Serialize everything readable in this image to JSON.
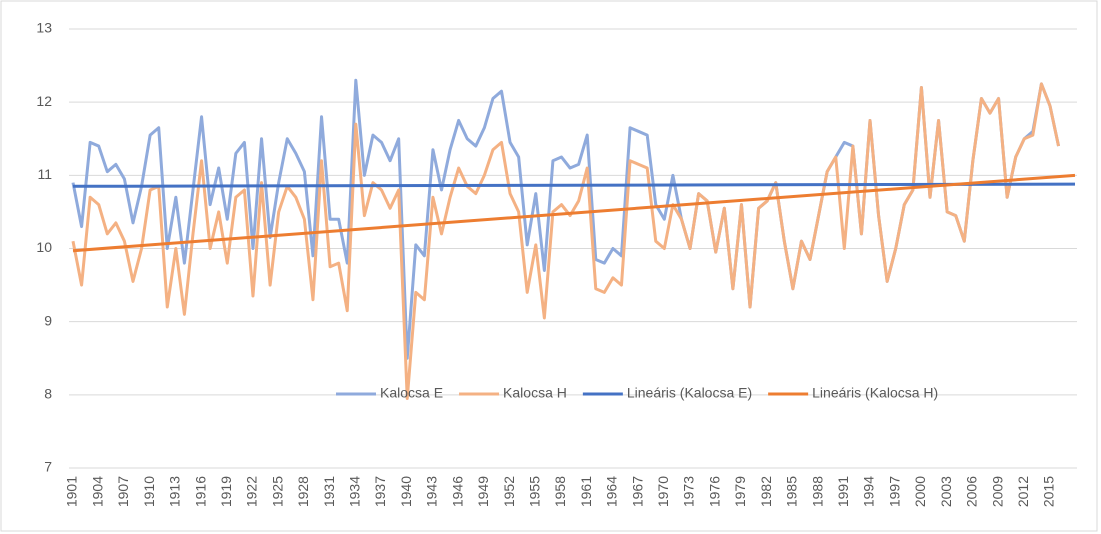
{
  "chart_data": {
    "type": "line",
    "categories": [
      "1901",
      null,
      null,
      "1904",
      null,
      null,
      "1907",
      null,
      null,
      "1910",
      null,
      null,
      "1913",
      null,
      null,
      "1916",
      null,
      null,
      "1919",
      null,
      null,
      "1922",
      null,
      null,
      "1925",
      null,
      null,
      "1928",
      null,
      null,
      "1931",
      null,
      null,
      "1934",
      null,
      null,
      "1937",
      null,
      null,
      "1940",
      null,
      null,
      "1943",
      null,
      null,
      "1946",
      null,
      null,
      "1949",
      null,
      null,
      "1952",
      null,
      null,
      "1955",
      null,
      null,
      "1958",
      null,
      null,
      "1961",
      null,
      null,
      "1964",
      null,
      null,
      "1967",
      null,
      null,
      "1970",
      null,
      null,
      "1973",
      null,
      null,
      "1976",
      null,
      null,
      "1979",
      null,
      null,
      "1982",
      null,
      null,
      "1985",
      null,
      null,
      "1988",
      null,
      null,
      "1991",
      null,
      null,
      "1994",
      null,
      null,
      "1997",
      null,
      null,
      "2000",
      null,
      null,
      "2003",
      null,
      null,
      "2006",
      null,
      null,
      "2009",
      null,
      null,
      "2012",
      null,
      null,
      "2015",
      null
    ],
    "series": [
      {
        "name": "Kalocsa E",
        "color": "#8faadc",
        "values": [
          10.9,
          10.3,
          11.45,
          11.4,
          11.05,
          11.15,
          10.95,
          10.35,
          10.85,
          11.55,
          11.65,
          10.0,
          10.7,
          9.8,
          10.8,
          11.8,
          10.6,
          11.1,
          10.4,
          11.3,
          11.45,
          10.0,
          11.5,
          10.15,
          10.9,
          11.5,
          11.3,
          11.05,
          9.9,
          11.8,
          10.4,
          10.4,
          9.8,
          12.3,
          11.0,
          11.55,
          11.45,
          11.2,
          11.5,
          8.5,
          10.05,
          9.9,
          11.35,
          10.8,
          11.35,
          11.75,
          11.5,
          11.4,
          11.65,
          12.05,
          12.15,
          11.45,
          11.25,
          10.05,
          10.75,
          9.7,
          11.2,
          11.25,
          11.1,
          11.15,
          11.55,
          9.85,
          9.8,
          10.0,
          9.9,
          11.65,
          11.6,
          11.55,
          10.6,
          10.4,
          11.0,
          10.4,
          10.0,
          10.75,
          10.65,
          9.95,
          10.55,
          9.45,
          10.6,
          9.2,
          10.55,
          10.65,
          10.9,
          10.1,
          9.45,
          10.1,
          9.85,
          10.45,
          11.05,
          11.25,
          11.45,
          11.4,
          10.2,
          11.75,
          10.45,
          9.55,
          10.0,
          10.6,
          10.8,
          12.2,
          10.7,
          11.75,
          10.5,
          10.45,
          10.1,
          11.2,
          12.05,
          11.85,
          12.05,
          10.7,
          11.25,
          11.5,
          11.6,
          12.25,
          11.95,
          11.4
        ]
      },
      {
        "name": "Kalocsa H",
        "color": "#f4b183",
        "values": [
          10.1,
          9.5,
          10.7,
          10.6,
          10.2,
          10.35,
          10.1,
          9.55,
          10.0,
          10.8,
          10.85,
          9.2,
          10.0,
          9.1,
          10.2,
          11.2,
          10.0,
          10.5,
          9.8,
          10.7,
          10.8,
          9.35,
          10.9,
          9.5,
          10.5,
          10.85,
          10.7,
          10.4,
          9.3,
          11.2,
          9.75,
          9.8,
          9.15,
          11.7,
          10.45,
          10.9,
          10.8,
          10.55,
          10.8,
          7.95,
          9.4,
          9.3,
          10.7,
          10.2,
          10.7,
          11.1,
          10.85,
          10.75,
          11.0,
          11.35,
          11.45,
          10.75,
          10.5,
          9.4,
          10.05,
          9.05,
          10.5,
          10.6,
          10.45,
          10.65,
          11.1,
          9.45,
          9.4,
          9.6,
          9.5,
          11.2,
          11.15,
          11.1,
          10.1,
          10.0,
          10.6,
          10.4,
          10.0,
          10.75,
          10.65,
          9.95,
          10.55,
          9.45,
          10.6,
          9.2,
          10.55,
          10.65,
          10.9,
          10.1,
          9.45,
          10.1,
          9.85,
          10.45,
          11.05,
          11.25,
          10.0,
          11.4,
          10.2,
          11.75,
          10.45,
          9.55,
          10.0,
          10.6,
          10.8,
          12.2,
          10.7,
          11.75,
          10.5,
          10.45,
          10.1,
          11.2,
          12.05,
          11.85,
          12.05,
          10.7,
          11.25,
          11.5,
          11.55,
          12.25,
          11.95,
          11.4
        ]
      }
    ],
    "trendlines": [
      {
        "name": "Lineáris (Kalocsa E)",
        "color": "#4472c4",
        "values": [
          10.85,
          10.88
        ]
      },
      {
        "name": "Lineáris (Kalocsa H)",
        "color": "#ed7d31",
        "values": [
          9.97,
          11.0
        ]
      }
    ],
    "ylim": [
      7,
      13
    ],
    "yticks": [
      7,
      8,
      9,
      10,
      11,
      12,
      13
    ],
    "grid": true,
    "legend": "bottom"
  }
}
